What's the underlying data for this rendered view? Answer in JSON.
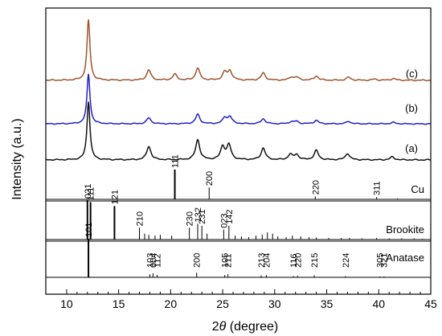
{
  "chart_data": {
    "type": "line",
    "xlabel_prefix": "2",
    "xlabel_symbol": "θ",
    "xlabel_suffix": " (degree)",
    "ylabel": "Intensity (a.u.)",
    "xlim": [
      8,
      45
    ],
    "xticks": [
      10,
      15,
      20,
      25,
      30,
      35,
      40,
      45
    ],
    "grid": false,
    "series": [
      {
        "name": "(c)",
        "color": "#a0522d",
        "peaks": [
          [
            12.1,
            1.0
          ],
          [
            17.9,
            0.17
          ],
          [
            20.4,
            0.1
          ],
          [
            22.6,
            0.2
          ],
          [
            25.2,
            0.13
          ],
          [
            25.7,
            0.15
          ],
          [
            28.9,
            0.12
          ],
          [
            31.6,
            0.05
          ],
          [
            32.1,
            0.05
          ],
          [
            34.0,
            0.07
          ],
          [
            37.1,
            0.05
          ],
          [
            39.6,
            0.02
          ],
          [
            41.4,
            0.03
          ]
        ]
      },
      {
        "name": "(b)",
        "color": "#1f1fc8",
        "peaks": [
          [
            12.1,
            1.0
          ],
          [
            17.9,
            0.12
          ],
          [
            22.6,
            0.19
          ],
          [
            25.2,
            0.12
          ],
          [
            25.7,
            0.14
          ],
          [
            28.9,
            0.1
          ],
          [
            31.6,
            0.04
          ],
          [
            32.1,
            0.05
          ],
          [
            34.0,
            0.07
          ],
          [
            37.1,
            0.05
          ],
          [
            41.4,
            0.03
          ]
        ]
      },
      {
        "name": "(a)",
        "color": "#111111",
        "peaks": [
          [
            12.1,
            1.0
          ],
          [
            17.9,
            0.23
          ],
          [
            22.6,
            0.34
          ],
          [
            25.0,
            0.22
          ],
          [
            25.6,
            0.25
          ],
          [
            28.9,
            0.2
          ],
          [
            31.5,
            0.09
          ],
          [
            32.1,
            0.09
          ],
          [
            34.0,
            0.16
          ],
          [
            37.0,
            0.11
          ],
          [
            41.3,
            0.05
          ]
        ]
      }
    ],
    "references": [
      {
        "name": "Cu",
        "lines": [
          [
            20.4,
            1.0
          ],
          [
            23.7,
            0.4
          ],
          [
            33.9,
            0.1
          ],
          [
            39.8,
            0.08
          ],
          [
            41.8,
            0.03
          ]
        ],
        "hkl": [
          {
            "x": 20.4,
            "label": "111"
          },
          {
            "x": 23.7,
            "label": "200"
          },
          {
            "x": 33.9,
            "label": "220"
          },
          {
            "x": 39.8,
            "label": "311"
          }
        ]
      },
      {
        "name": "Brookite",
        "lines": [
          [
            12.0,
            1.0
          ],
          [
            12.3,
            0.95
          ],
          [
            14.6,
            0.85
          ],
          [
            17.0,
            0.3
          ],
          [
            17.5,
            0.15
          ],
          [
            17.9,
            0.12
          ],
          [
            18.5,
            0.1
          ],
          [
            19.0,
            0.12
          ],
          [
            20.1,
            0.1
          ],
          [
            21.8,
            0.3
          ],
          [
            22.6,
            0.4
          ],
          [
            23.0,
            0.35
          ],
          [
            23.5,
            0.15
          ],
          [
            25.1,
            0.25
          ],
          [
            25.6,
            0.35
          ],
          [
            26.2,
            0.1
          ],
          [
            26.8,
            0.08
          ],
          [
            27.5,
            0.06
          ],
          [
            28.2,
            0.1
          ],
          [
            28.8,
            0.12
          ],
          [
            29.3,
            0.18
          ],
          [
            29.8,
            0.15
          ],
          [
            30.3,
            0.08
          ],
          [
            31.1,
            0.06
          ],
          [
            31.7,
            0.1
          ],
          [
            32.5,
            0.08
          ],
          [
            33.3,
            0.06
          ],
          [
            34.0,
            0.05
          ],
          [
            35.2,
            0.04
          ],
          [
            36.4,
            0.04
          ],
          [
            37.2,
            0.04
          ],
          [
            38.4,
            0.03
          ],
          [
            39.8,
            0.04
          ],
          [
            41.0,
            0.03
          ],
          [
            42.2,
            0.03
          ],
          [
            43.4,
            0.03
          ],
          [
            44.2,
            0.02
          ]
        ],
        "hkl": [
          {
            "x": 12.0,
            "label": "021"
          },
          {
            "x": 12.3,
            "label": "111"
          },
          {
            "x": 14.6,
            "label": "121"
          },
          {
            "x": 17.0,
            "label": "210"
          },
          {
            "x": 21.8,
            "label": "230"
          },
          {
            "x": 22.6,
            "label": "132"
          },
          {
            "x": 23.0,
            "label": "231"
          },
          {
            "x": 25.1,
            "label": "023"
          },
          {
            "x": 25.6,
            "label": "142"
          }
        ]
      },
      {
        "name": "Anatase",
        "lines": [
          [
            12.1,
            1.0
          ],
          [
            18.0,
            0.08
          ],
          [
            18.3,
            0.1
          ],
          [
            18.7,
            0.06
          ],
          [
            22.5,
            0.12
          ],
          [
            25.2,
            0.06
          ],
          [
            25.5,
            0.08
          ],
          [
            28.7,
            0.05
          ],
          [
            29.2,
            0.06
          ],
          [
            31.8,
            0.03
          ],
          [
            32.2,
            0.04
          ],
          [
            33.8,
            0.05
          ],
          [
            36.8,
            0.03
          ],
          [
            40.1,
            0.02
          ],
          [
            40.5,
            0.02
          ]
        ],
        "hkl": [
          {
            "x": 12.1,
            "label": "101"
          },
          {
            "x": 18.0,
            "label": "103"
          },
          {
            "x": 18.3,
            "label": "004"
          },
          {
            "x": 18.7,
            "label": "112"
          },
          {
            "x": 22.5,
            "label": "200"
          },
          {
            "x": 25.2,
            "label": "105"
          },
          {
            "x": 25.5,
            "label": "211"
          },
          {
            "x": 28.7,
            "label": "213"
          },
          {
            "x": 29.2,
            "label": "204"
          },
          {
            "x": 31.8,
            "label": "116"
          },
          {
            "x": 32.2,
            "label": "220"
          },
          {
            "x": 33.8,
            "label": "215"
          },
          {
            "x": 36.8,
            "label": "224"
          },
          {
            "x": 40.1,
            "label": "305"
          },
          {
            "x": 40.5,
            "label": "321"
          }
        ]
      }
    ]
  }
}
